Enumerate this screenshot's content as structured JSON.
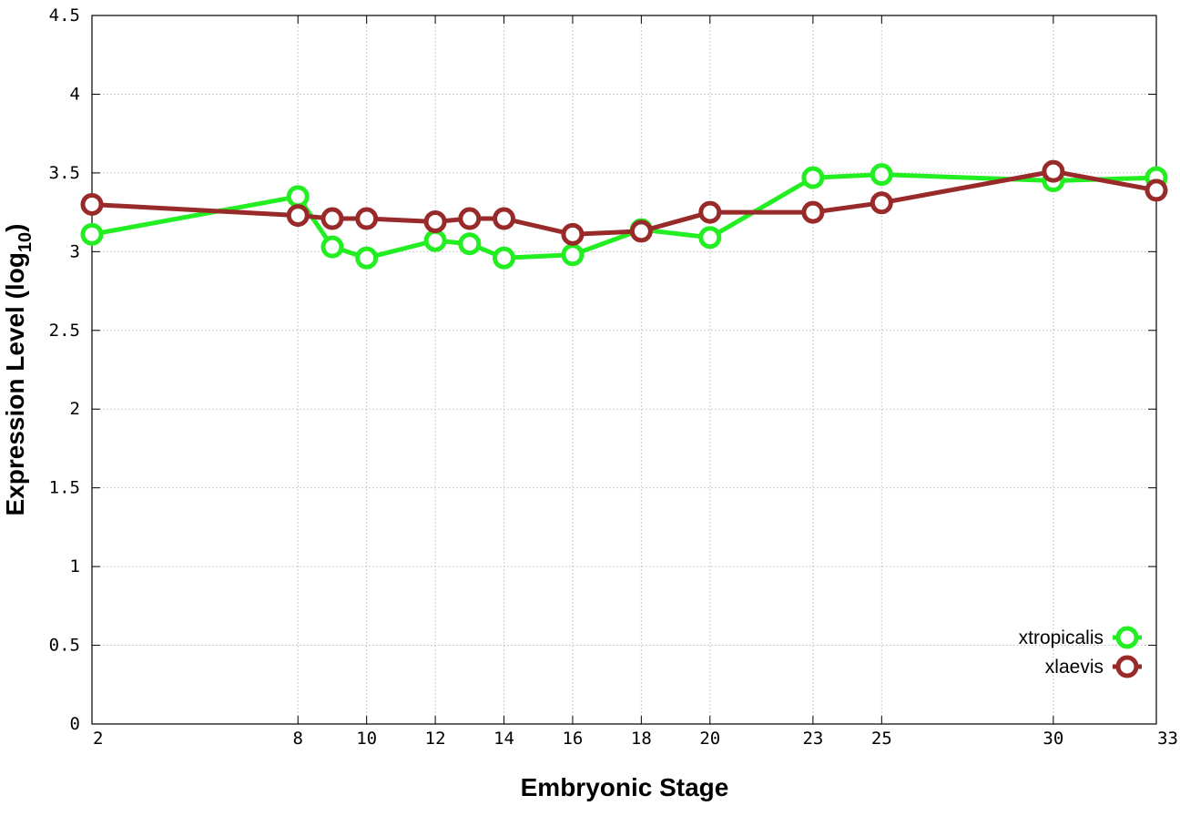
{
  "chart_data": {
    "type": "line",
    "xlabel": "Embryonic Stage",
    "ylabel": "Expression Level (log",
    "ylabel_subscript": "10",
    "ylabel_close": ")",
    "xlim": [
      2,
      33
    ],
    "ylim": [
      0,
      4.5
    ],
    "x_ticks": [
      2,
      8,
      10,
      12,
      14,
      16,
      18,
      20,
      23,
      25,
      30,
      33
    ],
    "y_ticks": [
      {
        "value": 0,
        "label": "0"
      },
      {
        "value": 0.5,
        "label": "0.5"
      },
      {
        "value": 1,
        "label": "1"
      },
      {
        "value": 1.5,
        "label": "1.5"
      },
      {
        "value": 2,
        "label": "2"
      },
      {
        "value": 2.5,
        "label": "2.5"
      },
      {
        "value": 3,
        "label": "3"
      },
      {
        "value": 3.5,
        "label": "3.5"
      },
      {
        "value": 4,
        "label": "4"
      },
      {
        "value": 4.5,
        "label": "4.5"
      }
    ],
    "grid": true,
    "legend_position": "bottom-right",
    "series": [
      {
        "name": "xtropicalis",
        "color": "#22ee22",
        "points": [
          [
            2,
            3.11
          ],
          [
            8,
            3.35
          ],
          [
            9,
            3.03
          ],
          [
            10,
            2.96
          ],
          [
            12,
            3.07
          ],
          [
            13,
            3.05
          ],
          [
            14,
            2.96
          ],
          [
            16,
            2.98
          ],
          [
            18,
            3.14
          ],
          [
            20,
            3.09
          ],
          [
            23,
            3.47
          ],
          [
            25,
            3.49
          ],
          [
            30,
            3.45
          ],
          [
            33,
            3.47
          ]
        ]
      },
      {
        "name": "xlaevis",
        "color": "#992a2a",
        "points": [
          [
            2,
            3.3
          ],
          [
            8,
            3.23
          ],
          [
            9,
            3.21
          ],
          [
            10,
            3.21
          ],
          [
            12,
            3.19
          ],
          [
            13,
            3.21
          ],
          [
            14,
            3.21
          ],
          [
            16,
            3.11
          ],
          [
            18,
            3.13
          ],
          [
            20,
            3.25
          ],
          [
            23,
            3.25
          ],
          [
            25,
            3.31
          ],
          [
            30,
            3.51
          ],
          [
            33,
            3.39
          ]
        ]
      }
    ]
  }
}
